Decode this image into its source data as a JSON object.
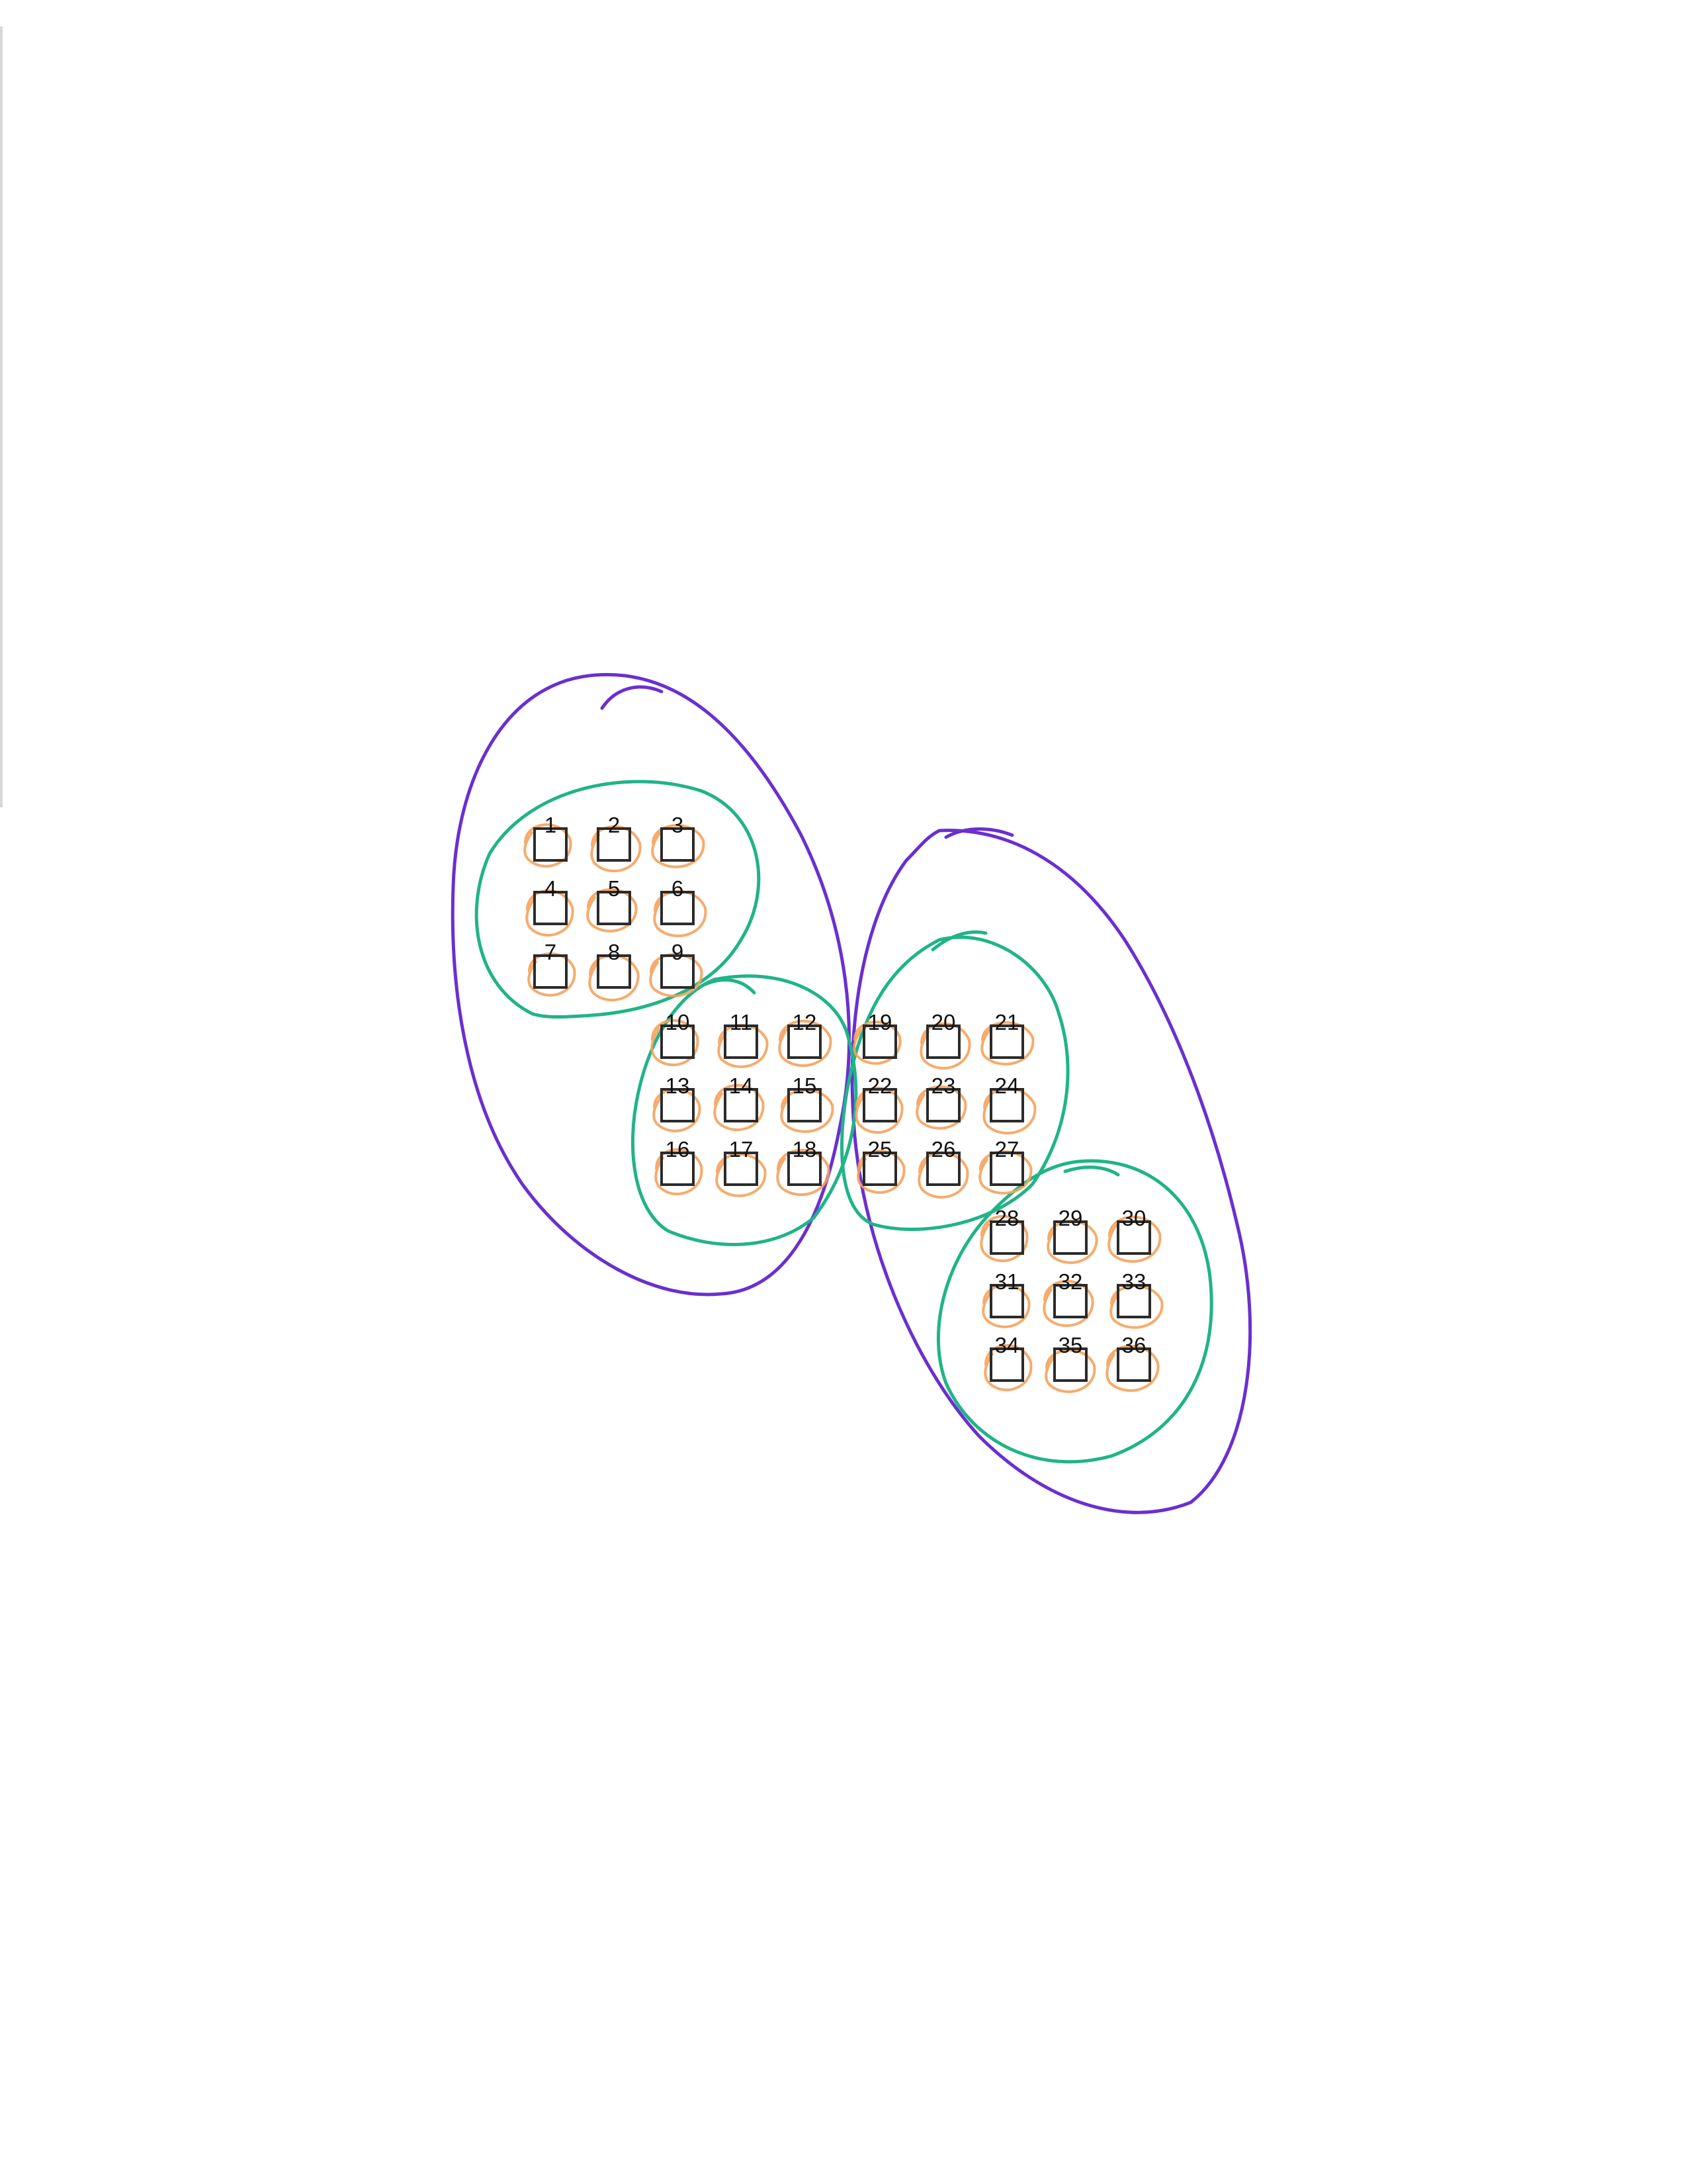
{
  "colors": {
    "outer_loop": "#6a2fd0",
    "group_loop": "#20b488",
    "item_loop": "#f5a25d",
    "box": "#2b2b2b",
    "label": "#111111"
  },
  "grid": {
    "label_order": [
      "1",
      "2",
      "3",
      "4",
      "5",
      "6",
      "7",
      "8",
      "9",
      "10",
      "11",
      "12",
      "13",
      "14",
      "15",
      "16",
      "17",
      "18",
      "19",
      "20",
      "21",
      "22",
      "23",
      "24",
      "25",
      "26",
      "27",
      "28",
      "29",
      "30",
      "31",
      "32",
      "33",
      "34",
      "35",
      "36"
    ]
  },
  "groups": [
    {
      "members": [
        "1",
        "2",
        "3",
        "4",
        "5",
        "6",
        "7",
        "8",
        "9"
      ]
    },
    {
      "members": [
        "10",
        "11",
        "12",
        "13",
        "14",
        "15",
        "16",
        "17",
        "18"
      ]
    },
    {
      "members": [
        "19",
        "20",
        "21",
        "22",
        "23",
        "24",
        "25",
        "26",
        "27"
      ]
    },
    {
      "members": [
        "28",
        "29",
        "30",
        "31",
        "32",
        "33",
        "34",
        "35",
        "36"
      ]
    }
  ],
  "outer_groups": [
    {
      "members": [
        "1",
        "2",
        "3",
        "4",
        "5",
        "6",
        "7",
        "8",
        "9",
        "10",
        "11",
        "12",
        "13",
        "14",
        "15",
        "16",
        "17",
        "18"
      ]
    },
    {
      "members": [
        "19",
        "20",
        "21",
        "22",
        "23",
        "24",
        "25",
        "26",
        "27",
        "28",
        "29",
        "30",
        "31",
        "32",
        "33",
        "34",
        "35",
        "36"
      ]
    }
  ]
}
